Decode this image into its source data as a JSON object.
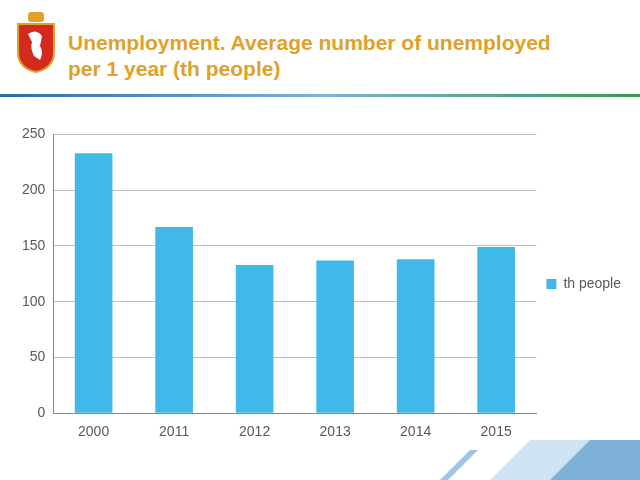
{
  "chart_data": {
    "type": "bar",
    "title": "Unemployment. Average number of unemployed per 1 year (th people)",
    "categories": [
      "2000",
      "2011",
      "2012",
      "2013",
      "2014",
      "2015"
    ],
    "series": [
      {
        "name": "th people",
        "color": "#40b8e8",
        "values": [
          233,
          167,
          133,
          137,
          138,
          149
        ]
      }
    ],
    "ylim": [
      0,
      250
    ],
    "yticks": [
      0,
      50,
      100,
      150,
      200,
      250
    ],
    "grid": true,
    "legend": "right"
  }
}
